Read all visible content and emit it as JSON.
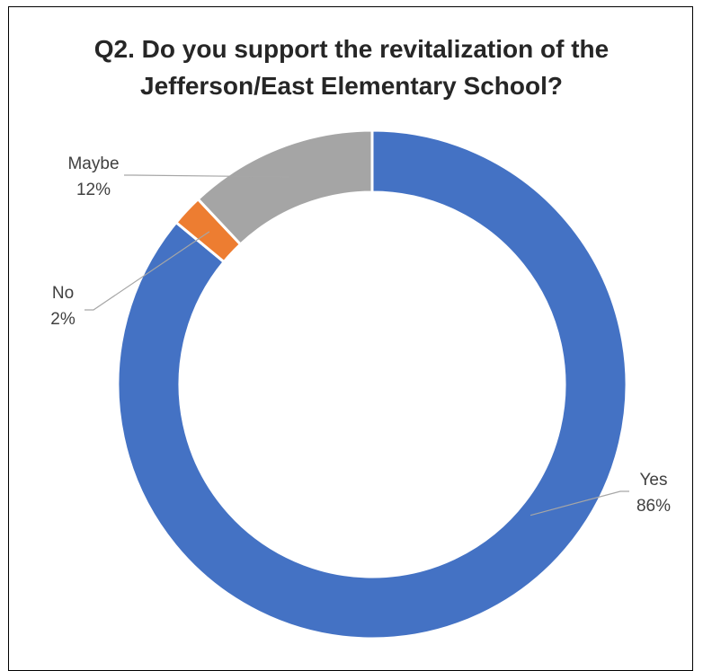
{
  "chart_data": {
    "type": "pie",
    "variant": "donut",
    "title_lines": [
      "Q2. Do you support the revitalization of the",
      "Jefferson/East Elementary School?"
    ],
    "slices": [
      {
        "label": "Yes",
        "value": 86,
        "value_text": "86%",
        "color": "#4472C4"
      },
      {
        "label": "No",
        "value": 2,
        "value_text": "2%",
        "color": "#ED7D31"
      },
      {
        "label": "Maybe",
        "value": 12,
        "value_text": "12%",
        "color": "#A5A5A5"
      }
    ],
    "legend": "none",
    "label_position": "outside-with-leader-lines"
  }
}
